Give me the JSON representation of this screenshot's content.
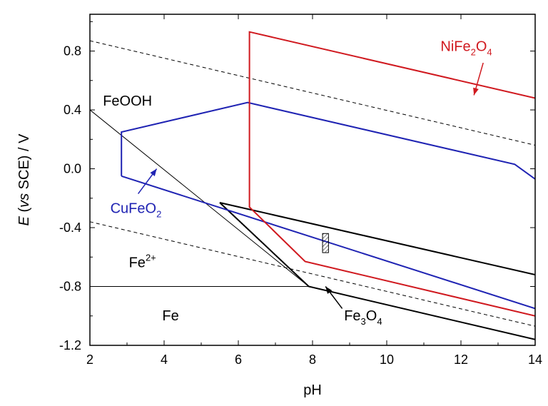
{
  "chart_data": {
    "type": "line",
    "title": "",
    "xlabel": "pH",
    "ylabel_italic": "E",
    "ylabel_vs": "vs",
    "ylabel_rest": " SCE) / V",
    "ylabel_open": " (",
    "xlim": [
      2,
      14
    ],
    "ylim": [
      -1.2,
      1.05
    ],
    "xticks": [
      2,
      4,
      6,
      8,
      10,
      12,
      14
    ],
    "yticks": [
      -1.2,
      -0.8,
      -0.4,
      0.0,
      0.4,
      0.8
    ],
    "ytick_labels": [
      "-1.2",
      "-0.8",
      "-0.4",
      "0.0",
      "0.4",
      "0.8"
    ],
    "grid": false,
    "colors": {
      "black": "#000000",
      "blue": "#1f23b3",
      "red": "#d0191f"
    },
    "series": [
      {
        "id": "water-upper",
        "color": "#000000",
        "dash": true,
        "width": 1,
        "points": [
          [
            2,
            0.87
          ],
          [
            14,
            0.16
          ]
        ]
      },
      {
        "id": "water-lower",
        "color": "#000000",
        "dash": true,
        "width": 1,
        "points": [
          [
            2,
            -0.36
          ],
          [
            14,
            -1.07
          ]
        ]
      },
      {
        "id": "fe2-fe-boundary",
        "color": "#000000",
        "width": 1,
        "points": [
          [
            2,
            -0.8
          ],
          [
            7.9,
            -0.8
          ]
        ]
      },
      {
        "id": "feooh-fe2-boundary",
        "color": "#000000",
        "width": 1,
        "points": [
          [
            2,
            0.4
          ],
          [
            7.9,
            -0.8
          ]
        ]
      },
      {
        "id": "fe3o4-region",
        "color": "#000000",
        "width": 2,
        "points": [
          [
            5.5,
            -0.23
          ],
          [
            7.9,
            -0.8
          ],
          [
            14,
            -1.16
          ]
        ]
      },
      {
        "id": "fe3o4-upper",
        "color": "#000000",
        "width": 2,
        "points": [
          [
            5.5,
            -0.23
          ],
          [
            14,
            -0.72
          ]
        ]
      },
      {
        "id": "cufeo2-region",
        "color": "#1f23b3",
        "width": 2,
        "points": [
          [
            2.85,
            -0.05
          ],
          [
            2.85,
            0.25
          ],
          [
            6.25,
            0.45
          ],
          [
            13.45,
            0.03
          ],
          [
            14,
            -0.07
          ]
        ]
      },
      {
        "id": "cufeo2-lower",
        "color": "#1f23b3",
        "width": 2,
        "points": [
          [
            2.85,
            -0.05
          ],
          [
            14,
            -0.95
          ]
        ]
      },
      {
        "id": "nife2o4-region",
        "color": "#d0191f",
        "width": 2,
        "points": [
          [
            14,
            0.48
          ],
          [
            6.3,
            0.93
          ],
          [
            6.3,
            -0.26
          ],
          [
            7.8,
            -0.63
          ],
          [
            14,
            -1.0
          ]
        ]
      }
    ],
    "labels": [
      {
        "text": "FeOOH",
        "x": 2.35,
        "y": 0.43,
        "color": "#000000"
      },
      {
        "text": "Fe",
        "x": 3.95,
        "y": -1.03,
        "color": "#000000"
      },
      {
        "text": "Fe",
        "sup": "2+",
        "x": 3.05,
        "y": -0.67,
        "color": "#000000"
      },
      {
        "text": "CuFeO",
        "sub": "2",
        "x": 2.55,
        "y": -0.3,
        "color": "#1f23b3"
      },
      {
        "text": "NiFe",
        "sub": "2",
        "after": "O",
        "sub2": "4",
        "x": 11.45,
        "y": 0.8,
        "color": "#d0191f"
      },
      {
        "text": "Fe",
        "sub": "3",
        "after": "O",
        "sub2": "4",
        "x": 8.85,
        "y": -1.03,
        "color": "#000000"
      }
    ],
    "arrows": [
      {
        "id": "cufeo2-arrow",
        "color": "#1f23b3",
        "from": [
          3.3,
          -0.17
        ],
        "to": [
          3.8,
          0.0
        ]
      },
      {
        "id": "nife2o4-arrow",
        "color": "#d0191f",
        "from": [
          12.6,
          0.72
        ],
        "to": [
          12.35,
          0.5
        ]
      },
      {
        "id": "fe3o4-arrow",
        "color": "#000000",
        "from": [
          8.8,
          -0.95
        ],
        "to": [
          8.35,
          -0.8
        ]
      }
    ],
    "hatched_box": {
      "x0": 8.27,
      "x1": 8.43,
      "y0": -0.57,
      "y1": -0.44
    }
  }
}
